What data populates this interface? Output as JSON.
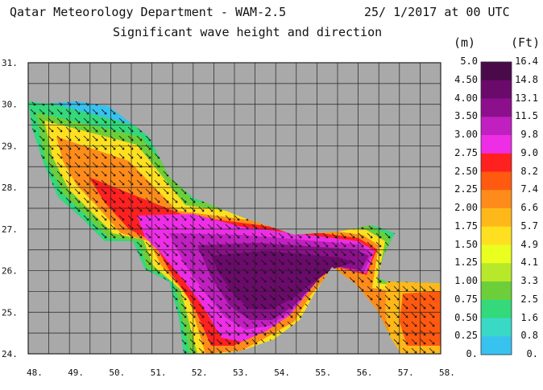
{
  "header": {
    "title_left": "Qatar Meteorology Department - WAM-2.5",
    "title_right": "25/ 1/2017 at 00 UTC",
    "subtitle": "Significant wave height and direction",
    "unit_m": "(m)",
    "unit_ft": "(Ft)"
  },
  "map": {
    "lon_ticks": [
      "48.",
      "49.",
      "50.",
      "51.",
      "52.",
      "53.",
      "54.",
      "55.",
      "56.",
      "57.",
      "58."
    ],
    "lat_ticks": [
      "31.",
      "30.",
      "29.",
      "28.",
      "27.",
      "26.",
      "25.",
      "24."
    ],
    "lon_range": [
      48,
      58
    ],
    "lat_range": [
      24,
      31
    ],
    "land_color": "#a9a9a9",
    "grid_color": "#222222",
    "arrow_color": "#111111"
  },
  "colorbar": {
    "levels_m": [
      "5.0",
      "4.50",
      "4.00",
      "3.50",
      "3.00",
      "2.75",
      "2.50",
      "2.25",
      "2.00",
      "1.75",
      "1.50",
      "1.25",
      "1.00",
      "0.75",
      "0.50",
      "0.25",
      "0."
    ],
    "levels_ft": [
      "16.4",
      "14.8",
      "13.1",
      "11.5",
      "9.8",
      "9.0",
      "8.2",
      "7.4",
      "6.6",
      "5.7",
      "4.9",
      "4.1",
      "3.3",
      "2.5",
      "1.6",
      "0.8",
      "0."
    ],
    "colors": [
      "#4a0a4a",
      "#6a0a6a",
      "#8c108c",
      "#c020c0",
      "#ee2ee6",
      "#ff2020",
      "#ff5a10",
      "#ff8c1a",
      "#ffb81a",
      "#ffe020",
      "#eaff20",
      "#b8e82a",
      "#6ccf3a",
      "#33d97a",
      "#3ad9c6",
      "#38c2ee"
    ]
  }
}
